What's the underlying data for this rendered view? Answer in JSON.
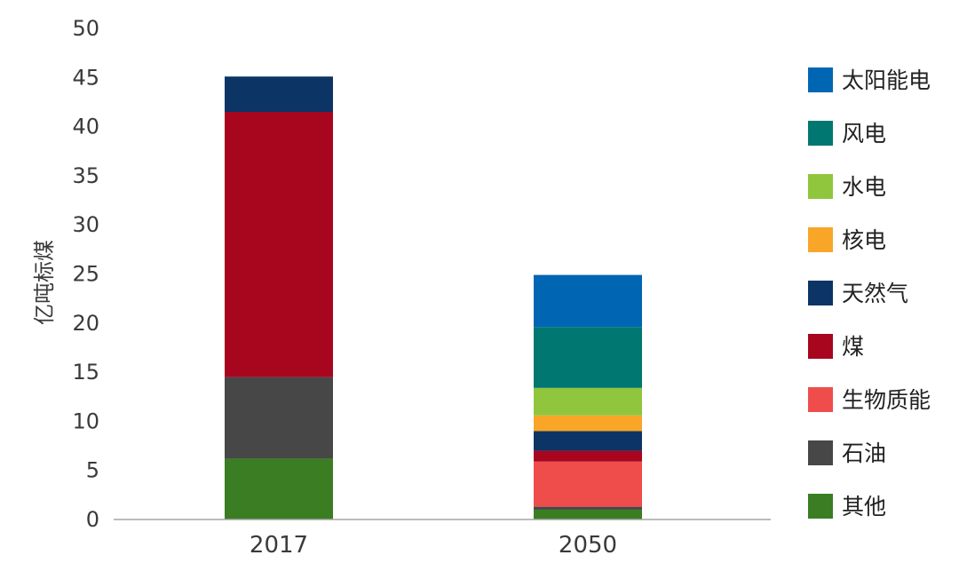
{
  "chart_data": {
    "type": "bar",
    "stacked": true,
    "categories": [
      "2017",
      "2050"
    ],
    "ylabel": "亿吨标煤",
    "ylim": [
      0,
      50
    ],
    "yticks": [
      0,
      5,
      10,
      15,
      20,
      25,
      30,
      35,
      40,
      45,
      50
    ],
    "grid": false,
    "legend_position": "right",
    "series": [
      {
        "name": "其他",
        "color": "#3a7d22",
        "values": [
          6.2,
          1.0
        ]
      },
      {
        "name": "石油",
        "color": "#474748",
        "values": [
          8.3,
          0.3
        ]
      },
      {
        "name": "生物质能",
        "color": "#ee4d4c",
        "values": [
          0,
          4.6
        ]
      },
      {
        "name": "煤",
        "color": "#a8051f",
        "values": [
          27.0,
          1.1
        ]
      },
      {
        "name": "天然气",
        "color": "#0c3566",
        "values": [
          3.6,
          2.0
        ]
      },
      {
        "name": "核电",
        "color": "#f9a628",
        "values": [
          0,
          1.6
        ]
      },
      {
        "name": "水电",
        "color": "#8fc63d",
        "values": [
          0,
          2.8
        ]
      },
      {
        "name": "风电",
        "color": "#007770",
        "values": [
          0,
          6.2
        ]
      },
      {
        "name": "太阳能电",
        "color": "#0066b3",
        "values": [
          0,
          5.3
        ]
      }
    ],
    "legend_order": [
      "太阳能电",
      "风电",
      "水电",
      "核电",
      "天然气",
      "煤",
      "生物质能",
      "石油",
      "其他"
    ]
  }
}
